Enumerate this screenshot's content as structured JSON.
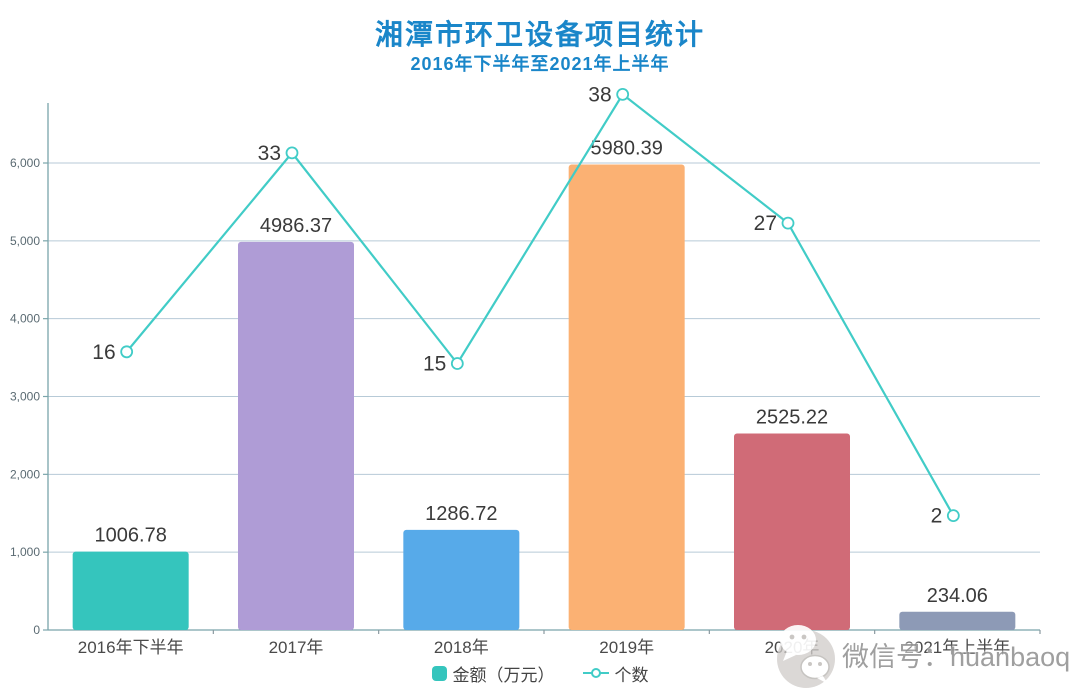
{
  "title": "湘潭市环卫设备项目统计",
  "subtitle": "2016年下半年至2021年上半年",
  "legend": {
    "amount_label": "金额（万元）",
    "count_label": "个数"
  },
  "watermark": {
    "icon": "wechat-icon",
    "text": "微信号：huanbaoq"
  },
  "y_axis": {
    "tick_labels": [
      "0",
      "1,000",
      "2,000",
      "3,000",
      "4,000",
      "5,000",
      "6,000"
    ]
  },
  "colors": {
    "title_blue": "#1a86c9",
    "bar_colors": [
      "#35c5bd",
      "#af9cd6",
      "#57aae9",
      "#fbb173",
      "#d06b77",
      "#8d9ab6"
    ],
    "line_color": "#41ccc7",
    "grid_color": "#b7cad7",
    "axis_color": "#7aa5ab",
    "tick_color": "#8a9aa0",
    "label_color": "#3a3a3a",
    "watermark_gray": "#cfccc9"
  },
  "chart_data": {
    "type": "bar",
    "title": "湘潭市环卫设备项目统计",
    "subtitle": "2016年下半年至2021年上半年",
    "categories": [
      "2016年下半年",
      "2017年",
      "2018年",
      "2019年",
      "2020年",
      "2021年上半年"
    ],
    "series": [
      {
        "name": "金额（万元）",
        "type": "bar",
        "values": [
          1006.78,
          4986.37,
          1286.72,
          5980.39,
          2525.22,
          234.06
        ]
      },
      {
        "name": "个数",
        "type": "line",
        "values": [
          16,
          33,
          15,
          38,
          27,
          2
        ]
      }
    ],
    "xlabel": "",
    "ylabel": "",
    "y_ticks": [
      0,
      1000,
      2000,
      3000,
      4000,
      5000,
      6000
    ],
    "ylim": [
      0,
      6300
    ],
    "secondary_axis_labeled": false,
    "grid": true,
    "legend_position": "bottom",
    "data_labels_visible": true
  }
}
